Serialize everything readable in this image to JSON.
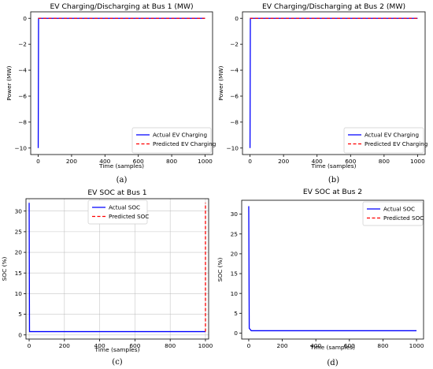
{
  "chart_data": [
    {
      "type": "line",
      "title": "EV Charging/Discharging at Bus 1 (MW)",
      "xlabel": "Time (samples)",
      "ylabel": "Power (MW)",
      "caption": "(a)",
      "xlim": [
        -45,
        1045
      ],
      "ylim": [
        -10.5,
        0.5
      ],
      "xticks": [
        0,
        200,
        400,
        600,
        800,
        1000
      ],
      "yticks": [
        0,
        -2,
        -4,
        -6,
        -8,
        -10
      ],
      "grid": false,
      "legend_position": "lower-right",
      "series": [
        {
          "name": "Actual EV Charging",
          "color": "#0000ff",
          "style": "solid",
          "x": [
            0,
            2,
            4,
            1000
          ],
          "y": [
            -10,
            0,
            0,
            0
          ]
        },
        {
          "name": "Predicted EV Charging",
          "color": "#ff0000",
          "style": "dashed",
          "x": [
            0,
            1000
          ],
          "y": [
            0,
            0
          ]
        }
      ]
    },
    {
      "type": "line",
      "title": "EV Charging/Discharging at Bus 2 (MW)",
      "xlabel": "Time (samples)",
      "ylabel": "Power (MW)",
      "caption": "(b)",
      "xlim": [
        -45,
        1045
      ],
      "ylim": [
        -10.5,
        0.5
      ],
      "xticks": [
        0,
        200,
        400,
        600,
        800,
        1000
      ],
      "yticks": [
        0,
        -2,
        -4,
        -6,
        -8,
        -10
      ],
      "grid": false,
      "legend_position": "lower-right",
      "series": [
        {
          "name": "Actual EV Charging",
          "color": "#0000ff",
          "style": "solid",
          "x": [
            0,
            2,
            4,
            1000
          ],
          "y": [
            -10,
            0,
            0,
            0
          ]
        },
        {
          "name": "Predicted EV Charging",
          "color": "#ff0000",
          "style": "dashed",
          "x": [
            0,
            1000
          ],
          "y": [
            0,
            0
          ]
        }
      ]
    },
    {
      "type": "line",
      "title": "EV SOC at Bus 1",
      "xlabel": "Time (samples)",
      "ylabel": "SOC (%)",
      "caption": "(c)",
      "xlim": [
        -18,
        1018
      ],
      "ylim": [
        -1,
        33
      ],
      "xticks": [
        0,
        200,
        400,
        600,
        800,
        1000
      ],
      "yticks": [
        0,
        5,
        10,
        15,
        20,
        25,
        30
      ],
      "grid": true,
      "legend_position": "upper-center",
      "series": [
        {
          "name": "Actual SOC",
          "color": "#0000ff",
          "style": "solid",
          "x": [
            0,
            2,
            1000
          ],
          "y": [
            32,
            0.8,
            0.8
          ]
        },
        {
          "name": "Predicted SOC",
          "color": "#ff0000",
          "style": "dashed",
          "x": [
            1000,
            1000
          ],
          "y": [
            0.8,
            32
          ]
        }
      ]
    },
    {
      "type": "line",
      "title": "EV SOC at Bus 2",
      "xlabel": "Time (samples)",
      "ylabel": "SOC (%)",
      "caption": "(d)",
      "xlim": [
        -42,
        1042
      ],
      "ylim": [
        -1.5,
        33.5
      ],
      "xticks": [
        0,
        200,
        400,
        600,
        800,
        1000
      ],
      "yticks": [
        0,
        5,
        10,
        15,
        20,
        25,
        30
      ],
      "grid": false,
      "legend_position": "upper-right",
      "series": [
        {
          "name": "Actual SOC",
          "color": "#0000ff",
          "style": "solid",
          "x": [
            0,
            3,
            15,
            1000
          ],
          "y": [
            32,
            1.2,
            0.6,
            0.6
          ]
        },
        {
          "name": "Predicted SOC",
          "color": "#ff0000",
          "style": "dashed",
          "x": [],
          "y": []
        }
      ]
    }
  ]
}
